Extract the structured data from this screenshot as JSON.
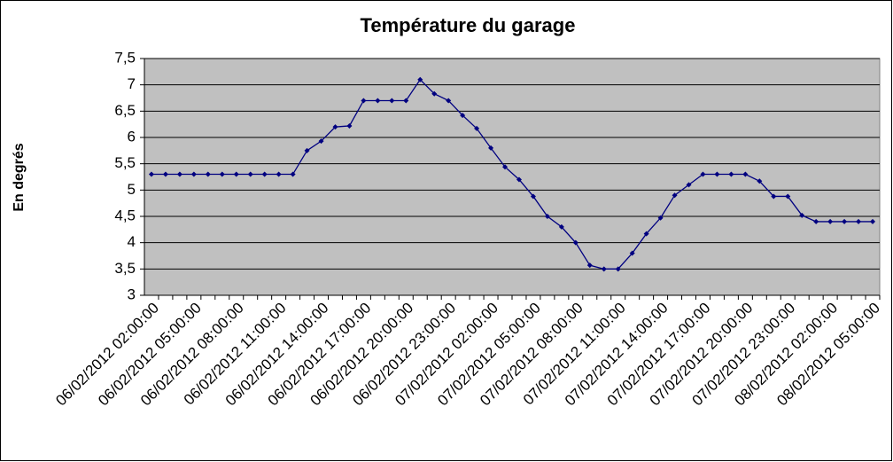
{
  "chart_data": {
    "type": "line",
    "title": "Température du garage",
    "y_label": "En degrés",
    "categories": [
      "06/02/2012 02:00:00",
      null,
      null,
      "06/02/2012 05:00:00",
      null,
      null,
      "06/02/2012 08:00:00",
      null,
      null,
      "06/02/2012 11:00:00",
      null,
      null,
      "06/02/2012 14:00:00",
      null,
      null,
      "06/02/2012 17:00:00",
      null,
      null,
      "06/02/2012 20:00:00",
      null,
      null,
      "06/02/2012 23:00:00",
      null,
      null,
      "07/02/2012 02:00:00",
      null,
      null,
      "07/02/2012 05:00:00",
      null,
      null,
      "07/02/2012 08:00:00",
      null,
      null,
      "07/02/2012 11:00:00",
      null,
      null,
      "07/02/2012 14:00:00",
      null,
      null,
      "07/02/2012 17:00:00",
      null,
      null,
      "07/02/2012 20:00:00",
      null,
      null,
      "07/02/2012 23:00:00",
      null,
      null,
      "08/02/2012 02:00:00",
      null,
      null,
      "08/02/2012 05:00:00"
    ],
    "series": [
      {
        "color": "#000080",
        "values": [
          5.3,
          5.3,
          5.3,
          5.3,
          5.3,
          5.3,
          5.3,
          5.3,
          5.3,
          5.3,
          5.3,
          5.75,
          5.93,
          6.2,
          6.22,
          6.7,
          6.7,
          6.7,
          6.7,
          7.1,
          6.83,
          6.7,
          6.42,
          6.17,
          5.8,
          5.44,
          5.2,
          4.88,
          4.5,
          4.3,
          4.0,
          3.57,
          3.5,
          3.5,
          3.8,
          4.17,
          4.47,
          4.9,
          5.1,
          5.3,
          5.3,
          5.3,
          5.3,
          5.17,
          4.88,
          4.88,
          4.52,
          4.4,
          4.4,
          4.4,
          4.4,
          4.4
        ]
      }
    ],
    "ylim": [
      3,
      7.5
    ],
    "yticks": [
      3,
      {
        "value": 3.5,
        "label": "3,5"
      },
      4,
      {
        "value": 4.5,
        "label": "4,5"
      },
      5,
      {
        "value": 5.5,
        "label": "5,5"
      },
      6,
      {
        "value": 6.5,
        "label": "6,5"
      },
      7,
      {
        "value": 7.5,
        "label": "7,5"
      }
    ],
    "grid": true,
    "plot_background": "#c0c0c0"
  }
}
